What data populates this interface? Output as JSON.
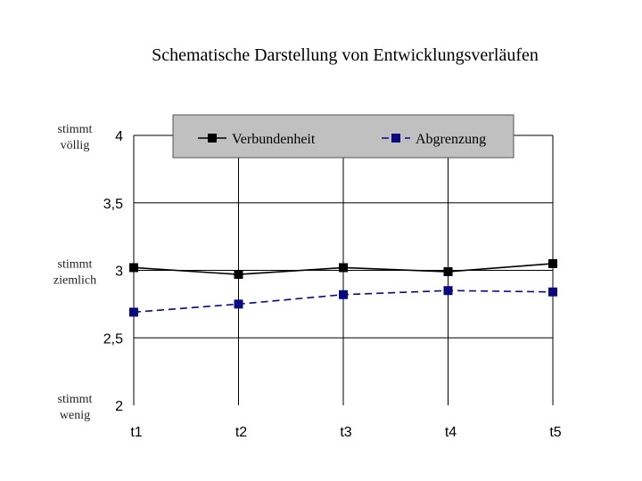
{
  "chart_data": {
    "type": "line",
    "title": "Schematische Darstellung von Entwicklungsverläufen",
    "categories": [
      "t1",
      "t2",
      "t3",
      "t4",
      "t5"
    ],
    "ylim": [
      2,
      4
    ],
    "yticks": [
      "2",
      "2,5",
      "3",
      "3,5",
      "4"
    ],
    "ytick_values": [
      2,
      2.5,
      3,
      3.5,
      4
    ],
    "y_side_labels": [
      {
        "value": 4,
        "line1": "stimmt",
        "line2": "völlig"
      },
      {
        "value": 3,
        "line1": "stimmt",
        "line2": "ziemlich"
      },
      {
        "value": 2,
        "line1": "stimmt",
        "line2": "wenig"
      }
    ],
    "legend_position": "top",
    "series": [
      {
        "name": "Verbundenheit",
        "color": "#000000",
        "dashed": false,
        "values": [
          3.02,
          2.97,
          3.02,
          2.99,
          3.05
        ]
      },
      {
        "name": "Abgrenzung",
        "color": "#0a0a80",
        "dashed": true,
        "values": [
          2.69,
          2.75,
          2.82,
          2.85,
          2.84
        ]
      }
    ]
  }
}
